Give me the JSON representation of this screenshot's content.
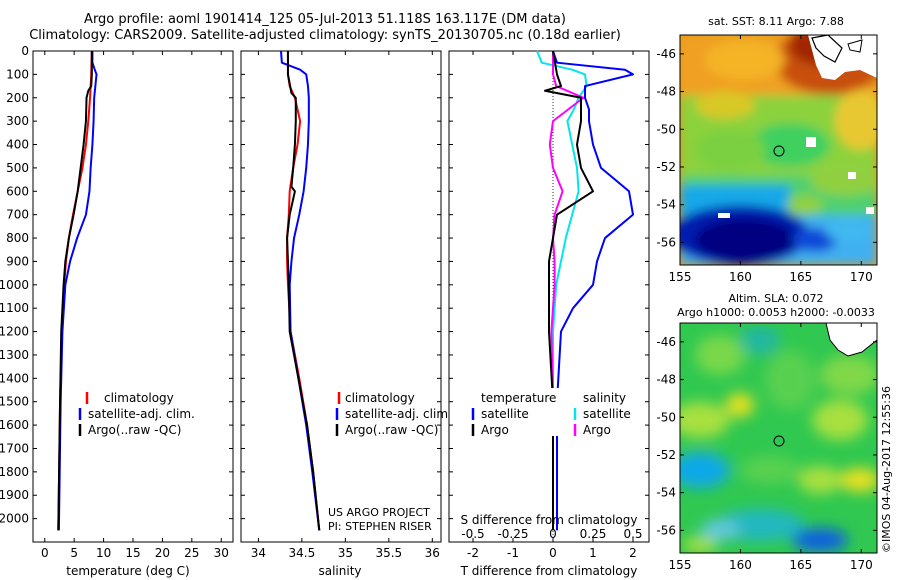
{
  "header": {
    "line1": "Argo profile: aoml 1901414_125 05-Jul-2013 51.118S 163.117E (DM data)",
    "line2": "Climatology: CARS2009. Satellite-adjusted climatology: synTS_20130705.nc (0.18d earlier)"
  },
  "colors": {
    "climatology": "#ff0000",
    "satellite": "#0000ff",
    "argo": "#000000",
    "salinity_satellite": "#00e5ee",
    "salinity_argo": "#ff00ff"
  },
  "chart_data": [
    {
      "type": "line",
      "name": "temperature-profile",
      "xlabel": "temperature (deg C)",
      "ylabel": "",
      "xlim": [
        -2,
        32
      ],
      "ylim": [
        2100,
        0
      ],
      "xticks": [
        0,
        5,
        10,
        15,
        20,
        25,
        30
      ],
      "yticks": [
        0,
        100,
        200,
        300,
        400,
        500,
        600,
        700,
        800,
        900,
        1000,
        1100,
        1200,
        1300,
        1400,
        1500,
        1600,
        1700,
        1800,
        1900,
        2000
      ],
      "legend": [
        "climatology",
        "satellite-adj. clim.",
        "Argo(..raw -QC)"
      ],
      "legend_position": "lower-center",
      "series": [
        {
          "name": "climatology",
          "y": [
            0,
            100,
            200,
            300,
            400,
            500,
            600,
            700,
            800,
            900,
            1000,
            1200,
            1500,
            2050
          ],
          "x": [
            8.0,
            7.9,
            7.7,
            7.4,
            7.0,
            6.4,
            5.6,
            4.8,
            4.1,
            3.6,
            3.3,
            2.9,
            2.6,
            2.3
          ]
        },
        {
          "name": "satellite-adj. clim.",
          "y": [
            0,
            50,
            80,
            100,
            150,
            200,
            300,
            400,
            500,
            600,
            700,
            800,
            900,
            1000,
            1200,
            1500,
            2050
          ],
          "x": [
            8.1,
            8.1,
            8.5,
            8.8,
            8.6,
            8.4,
            8.3,
            8.1,
            7.8,
            7.6,
            7.0,
            5.5,
            4.3,
            3.5,
            3.0,
            2.7,
            2.4
          ]
        },
        {
          "name": "Argo(..raw -QC)",
          "y": [
            0,
            100,
            150,
            170,
            200,
            300,
            400,
            500,
            600,
            700,
            800,
            900,
            1000,
            1200,
            1500,
            2050
          ],
          "x": [
            8.0,
            8.0,
            7.9,
            7.4,
            7.1,
            7.0,
            6.6,
            6.1,
            5.6,
            4.9,
            4.1,
            3.5,
            3.2,
            2.8,
            2.6,
            2.3
          ]
        }
      ]
    },
    {
      "type": "line",
      "name": "salinity-profile",
      "xlabel": "salinity",
      "ylabel": "",
      "xlim": [
        33.8,
        36.1
      ],
      "ylim": [
        2100,
        0
      ],
      "xticks": [
        34,
        34.5,
        35,
        35.5,
        36
      ],
      "xticklabels": [
        "34",
        "34.5",
        "35",
        "35.5",
        "36"
      ],
      "legend": [
        "climatology",
        "satellite-adj. clim.",
        "Argo(..raw -QC)"
      ],
      "legend_position": "lower-center",
      "annotation": [
        "US ARGO PROJECT",
        "PI: STEPHEN RISER"
      ],
      "series": [
        {
          "name": "climatology",
          "y": [
            0,
            100,
            150,
            200,
            300,
            400,
            500,
            600,
            700,
            800,
            900,
            1000,
            1200,
            1400,
            1600,
            1800,
            2050
          ],
          "x": [
            34.34,
            34.34,
            34.36,
            34.42,
            34.48,
            34.45,
            34.4,
            34.36,
            34.35,
            34.33,
            34.33,
            34.34,
            34.37,
            34.47,
            34.56,
            34.63,
            34.7
          ]
        },
        {
          "name": "satellite-adj. clim.",
          "y": [
            0,
            50,
            80,
            100,
            150,
            200,
            300,
            400,
            500,
            600,
            700,
            800,
            900,
            1000,
            1200,
            1400,
            1600,
            1800,
            2050
          ],
          "x": [
            34.26,
            34.27,
            34.48,
            34.55,
            34.57,
            34.58,
            34.58,
            34.57,
            34.55,
            34.52,
            34.47,
            34.41,
            34.38,
            34.36,
            34.37,
            34.46,
            34.55,
            34.62,
            34.7
          ]
        },
        {
          "name": "Argo(..raw -QC)",
          "y": [
            0,
            100,
            180,
            200,
            300,
            400,
            500,
            580,
            600,
            700,
            800,
            900,
            1000,
            1200,
            1400,
            1600,
            1800,
            2050
          ],
          "x": [
            34.34,
            34.34,
            34.38,
            34.43,
            34.43,
            34.42,
            34.4,
            34.38,
            34.42,
            34.36,
            34.33,
            34.34,
            34.35,
            34.36,
            34.46,
            34.56,
            34.63,
            34.7
          ]
        }
      ]
    },
    {
      "type": "line",
      "name": "difference-profile",
      "xlabel": "T difference from climatology",
      "xlabel_top": "S difference from climatology",
      "xlim": [
        -2.6,
        2.4
      ],
      "ylim": [
        2100,
        0
      ],
      "xticks": [
        -2,
        -1,
        0,
        1,
        2
      ],
      "xticklabels": [
        "-2",
        "-1",
        "0",
        "1",
        "2"
      ],
      "xticks_s": [
        -0.5,
        -0.25,
        0,
        0.25,
        0.5
      ],
      "xticklabels_s": [
        "-0.5",
        "-0.25",
        "0",
        "0.25",
        "0.5"
      ],
      "legend_groups": {
        "temperature": [
          "satellite",
          "Argo"
        ],
        "salinity": [
          "satellite",
          "Argo"
        ]
      },
      "series": [
        {
          "name": "temperature satellite",
          "group": "temperature",
          "y": [
            0,
            50,
            80,
            100,
            150,
            200,
            250,
            300,
            400,
            500,
            600,
            700,
            800,
            900,
            1000,
            1100,
            1200,
            1500,
            2050
          ],
          "x": [
            0.0,
            0.1,
            1.8,
            2.0,
            0.8,
            0.8,
            0.9,
            0.9,
            1.0,
            1.2,
            1.9,
            2.0,
            1.3,
            1.1,
            1.0,
            0.5,
            0.2,
            0.1,
            0.1
          ]
        },
        {
          "name": "temperature Argo",
          "group": "temperature",
          "y": [
            0,
            100,
            150,
            170,
            200,
            300,
            400,
            500,
            600,
            700,
            800,
            900,
            1000,
            1200,
            1500,
            2050
          ],
          "x": [
            0.0,
            0.1,
            0.2,
            -0.2,
            0.7,
            0.7,
            0.6,
            0.7,
            1.0,
            0.1,
            0.0,
            -0.1,
            -0.1,
            -0.1,
            0.0,
            0.0
          ]
        },
        {
          "name": "salinity satellite",
          "group": "salinity",
          "y": [
            0,
            50,
            80,
            100,
            150,
            200,
            250,
            300,
            400,
            500,
            600,
            700,
            800,
            900,
            1000,
            1200,
            1500,
            2050
          ],
          "x": [
            -0.1,
            -0.07,
            0.12,
            0.2,
            0.21,
            0.16,
            0.13,
            0.09,
            0.12,
            0.15,
            0.16,
            0.12,
            0.08,
            0.05,
            0.02,
            0.0,
            0.0,
            0.0
          ]
        },
        {
          "name": "salinity Argo",
          "group": "salinity",
          "y": [
            0,
            100,
            150,
            200,
            300,
            400,
            500,
            600,
            700,
            800,
            900,
            1000,
            1200,
            1500,
            2050
          ],
          "x": [
            0.0,
            0.0,
            0.02,
            0.19,
            0.0,
            -0.02,
            0.0,
            0.06,
            0.01,
            0.0,
            0.01,
            0.01,
            -0.01,
            0.0,
            0.0
          ]
        }
      ]
    },
    {
      "type": "heatmap",
      "name": "sst-map",
      "title": "sat. SST: 8.11  Argo: 7.88",
      "xlim": [
        155,
        171.3
      ],
      "ylim": [
        -57.2,
        -45
      ],
      "xticks": [
        155,
        160,
        165,
        170
      ],
      "yticks": [
        -46,
        -48,
        -50,
        -52,
        -54,
        -56
      ],
      "argo_position": [
        163.117,
        -51.118
      ]
    },
    {
      "type": "heatmap",
      "name": "sla-map",
      "title": "Altim. SLA: 0.072",
      "subtitle": "Argo h1000: 0.0053 h2000: -0.0033",
      "xlim": [
        155,
        171.3
      ],
      "ylim": [
        -57.2,
        -45
      ],
      "xticks": [
        155,
        160,
        165,
        170
      ],
      "yticks": [
        -46,
        -48,
        -50,
        -52,
        -54,
        -56
      ],
      "argo_position": [
        163.117,
        -51.118
      ]
    }
  ],
  "legend_headers": {
    "temperature": "temperature",
    "salinity": "salinity"
  },
  "footer": {
    "stamp": "©IMOS 04-Aug-2017 12:55:36"
  }
}
